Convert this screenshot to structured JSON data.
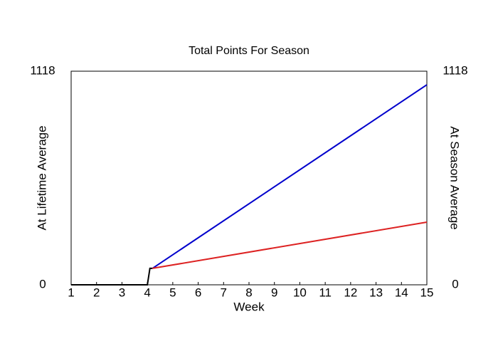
{
  "chart_data": {
    "type": "line",
    "title": "Total Points For Season",
    "xlabel": "Week",
    "ylabel": "At Lifetime Average",
    "y2label": "At Season Average",
    "ylabel_color": "#0000cc",
    "y2label_color": "#dd2222",
    "xlim": [
      1,
      15
    ],
    "xticks": [
      1,
      2,
      3,
      4,
      5,
      6,
      7,
      8,
      9,
      10,
      11,
      12,
      13,
      14,
      15
    ],
    "ylim": [
      0,
      1118
    ],
    "yticks": [
      0,
      1118
    ],
    "y2lim": [
      0,
      1118
    ],
    "y2ticks": [
      0,
      1118
    ],
    "series": [
      {
        "color": "#000000",
        "x": [
          1,
          2,
          3,
          4,
          4.1,
          4.2
        ],
        "values": [
          0,
          0,
          0,
          0,
          86,
          86
        ]
      },
      {
        "color": "#0000cc",
        "x": [
          4.2,
          15
        ],
        "values": [
          86,
          1047
        ]
      },
      {
        "color": "#dd2222",
        "axis": "y2",
        "x": [
          4.2,
          15
        ],
        "values": [
          86,
          328
        ]
      }
    ]
  }
}
